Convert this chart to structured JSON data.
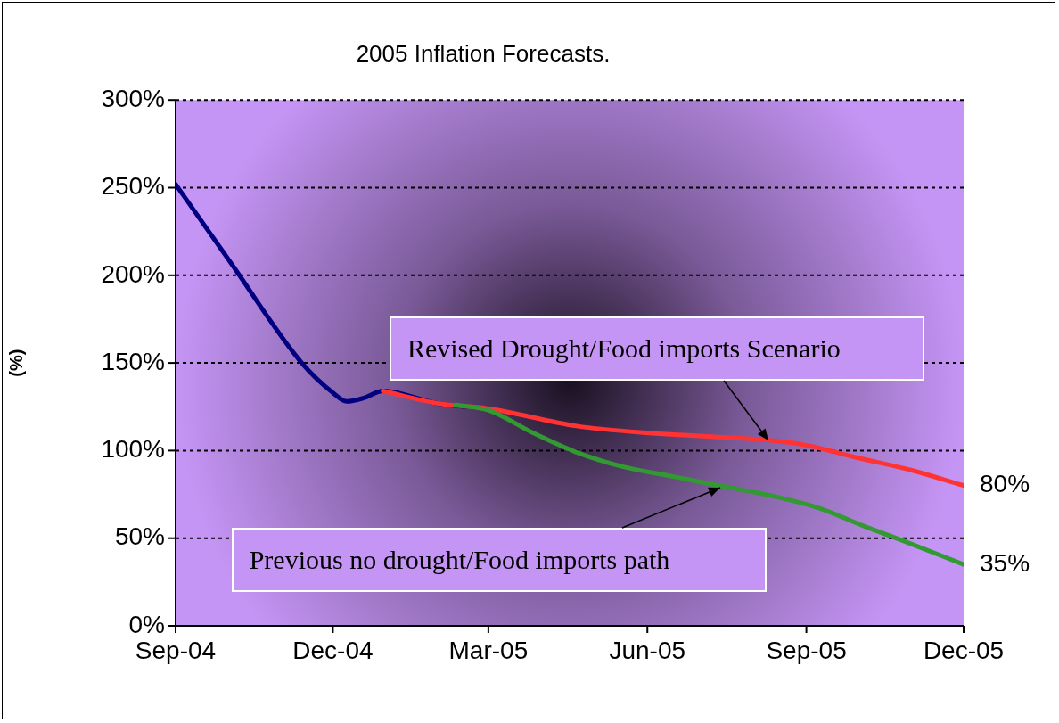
{
  "chart_data": {
    "type": "line",
    "title": "2005 Inflation Forecasts.",
    "ylabel": "(%)",
    "xlim": [
      "2004-09-01",
      "2005-12-01"
    ],
    "xticks": [
      {
        "value": "2004-09-01",
        "label": "Sep-04"
      },
      {
        "value": "2004-12-01",
        "label": "Dec-04"
      },
      {
        "value": "2005-03-01",
        "label": "Mar-05"
      },
      {
        "value": "2005-06-01",
        "label": "Jun-05"
      },
      {
        "value": "2005-09-01",
        "label": "Sep-05"
      },
      {
        "value": "2005-12-01",
        "label": "Dec-05"
      }
    ],
    "ylim": [
      0,
      300
    ],
    "yticks": [
      {
        "value": 0,
        "label": "0%"
      },
      {
        "value": 50,
        "label": "50%"
      },
      {
        "value": 100,
        "label": "100%"
      },
      {
        "value": 150,
        "label": "150%"
      },
      {
        "value": 200,
        "label": "200%"
      },
      {
        "value": 250,
        "label": "250%"
      },
      {
        "value": 300,
        "label": "300%"
      }
    ],
    "grid": "y",
    "legend": false,
    "marker": "none",
    "series": [
      {
        "color": "#000080",
        "x": [
          "2004-09-01",
          "2004-10-03",
          "2004-11-13",
          "2004-12-01",
          "2004-12-09",
          "2004-12-19",
          "2004-12-30",
          "2005-01-30",
          "2005-03-01"
        ],
        "values": [
          252,
          207,
          150,
          133,
          128,
          130,
          134,
          127,
          124
        ]
      },
      {
        "color": "#ff3333",
        "x": [
          "2004-12-30",
          "2005-01-30",
          "2005-03-01",
          "2005-04-21",
          "2005-06-02",
          "2005-07-08",
          "2005-08-09",
          "2005-09-01",
          "2005-09-30",
          "2005-10-31",
          "2005-12-01"
        ],
        "values": [
          134,
          127,
          124,
          114,
          110,
          108,
          106,
          103,
          96,
          89,
          80
        ],
        "value_labels": [
          null,
          null,
          null,
          null,
          null,
          null,
          null,
          null,
          null,
          null,
          "80%"
        ]
      },
      {
        "color": "#339933",
        "x": [
          "2005-02-10",
          "2005-03-01",
          "2005-03-27",
          "2005-04-21",
          "2005-05-17",
          "2005-06-17",
          "2005-07-18",
          "2005-08-13",
          "2005-09-09",
          "2005-10-04",
          "2005-10-31",
          "2005-12-01"
        ],
        "values": [
          126,
          123,
          110,
          99,
          91,
          85,
          79,
          74,
          67,
          57,
          47,
          35
        ],
        "value_labels": [
          null,
          null,
          null,
          null,
          null,
          null,
          null,
          null,
          null,
          null,
          null,
          "35%"
        ]
      }
    ],
    "annotations": [
      {
        "text": "Revised Drought/Food imports Scenario",
        "x": "2005-08-10",
        "y": 106
      },
      {
        "text": "Previous no drought/Food imports path",
        "x": "2005-07-13",
        "y": 79
      }
    ]
  }
}
